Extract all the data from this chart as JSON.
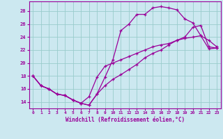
{
  "xlabel": "Windchill (Refroidissement éolien,°C)",
  "background_color": "#cce8f0",
  "grid_color": "#99cccc",
  "line_color": "#990099",
  "xlim": [
    -0.5,
    23.5
  ],
  "ylim": [
    13.0,
    29.5
  ],
  "yticks": [
    14,
    16,
    18,
    20,
    22,
    24,
    26,
    28
  ],
  "xticks": [
    0,
    1,
    2,
    3,
    4,
    5,
    6,
    7,
    8,
    9,
    10,
    11,
    12,
    13,
    14,
    15,
    16,
    17,
    18,
    19,
    20,
    21,
    22,
    23
  ],
  "line1_x": [
    0,
    1,
    2,
    3,
    4,
    5,
    6,
    7,
    8,
    9,
    10,
    11,
    12,
    13,
    14,
    15,
    16,
    17,
    18,
    19,
    20,
    21,
    22,
    23
  ],
  "line1_y": [
    18.0,
    16.5,
    16.0,
    15.2,
    15.0,
    14.3,
    13.8,
    13.5,
    15.2,
    17.8,
    20.5,
    25.0,
    26.0,
    27.5,
    27.5,
    28.5,
    28.7,
    28.5,
    28.2,
    26.8,
    26.2,
    24.2,
    23.5,
    22.5
  ],
  "line2_x": [
    0,
    1,
    2,
    3,
    4,
    5,
    6,
    7,
    8,
    9,
    10,
    11,
    12,
    13,
    14,
    15,
    16,
    17,
    18,
    19,
    20,
    21,
    22,
    23
  ],
  "line2_y": [
    18.0,
    16.5,
    16.0,
    15.2,
    15.0,
    14.3,
    13.8,
    13.5,
    15.2,
    16.5,
    17.5,
    18.2,
    19.0,
    19.8,
    20.8,
    21.5,
    22.0,
    22.8,
    23.5,
    24.0,
    25.5,
    25.8,
    22.5,
    22.3
  ],
  "line3_x": [
    0,
    1,
    2,
    3,
    4,
    5,
    6,
    7,
    8,
    9,
    10,
    11,
    12,
    13,
    14,
    15,
    16,
    17,
    18,
    19,
    20,
    21,
    22,
    23
  ],
  "line3_y": [
    18.0,
    16.5,
    16.0,
    15.2,
    15.0,
    14.3,
    13.8,
    14.8,
    17.8,
    19.5,
    20.0,
    20.5,
    21.0,
    21.5,
    22.0,
    22.5,
    22.8,
    23.0,
    23.5,
    23.8,
    24.0,
    24.2,
    22.2,
    22.3
  ]
}
